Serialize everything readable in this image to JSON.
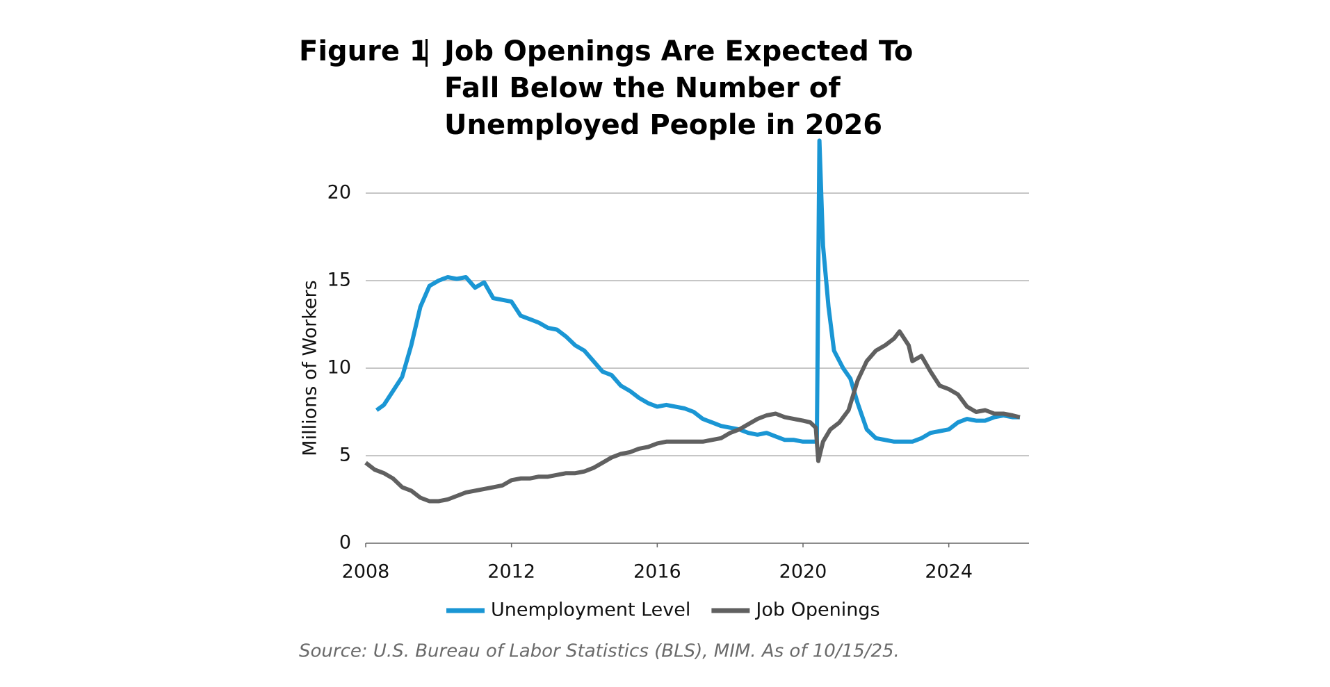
{
  "chart_data": {
    "type": "line",
    "figure_label": "Figure 1",
    "title": "Job Openings Are Expected To Fall Below the Number of Unemployed People in 2026",
    "ylabel": "Millions of Workers",
    "source": "Source: U.S. Bureau of Labor Statistics (BLS), MIM. As of 10/15/25.",
    "xlim": [
      2008,
      2026.2
    ],
    "xticks": [
      2008,
      2012,
      2016,
      2020,
      2024
    ],
    "ylim": [
      0,
      23
    ],
    "yticks": [
      0,
      5,
      10,
      15,
      20
    ],
    "grid": true,
    "legend": "bottom",
    "series": [
      {
        "name": "Unemployment Level",
        "color": "#1a96d4",
        "x": [
          2008.3,
          2008.5,
          2008.75,
          2009.0,
          2009.25,
          2009.5,
          2009.75,
          2010.0,
          2010.25,
          2010.5,
          2010.75,
          2011.0,
          2011.25,
          2011.5,
          2011.75,
          2012.0,
          2012.25,
          2012.5,
          2012.75,
          2013.0,
          2013.25,
          2013.5,
          2013.75,
          2014.0,
          2014.25,
          2014.5,
          2014.75,
          2015.0,
          2015.25,
          2015.5,
          2015.75,
          2016.0,
          2016.25,
          2016.5,
          2016.75,
          2017.0,
          2017.25,
          2017.5,
          2017.75,
          2018.0,
          2018.25,
          2018.5,
          2018.75,
          2019.0,
          2019.25,
          2019.5,
          2019.75,
          2020.0,
          2020.38,
          2020.45,
          2020.55,
          2020.7,
          2020.85,
          2021.1,
          2021.3,
          2021.5,
          2021.75,
          2022.0,
          2022.25,
          2022.5,
          2022.75,
          2023.0,
          2023.25,
          2023.5,
          2023.75,
          2024.0,
          2024.25,
          2024.5,
          2024.75,
          2025.0,
          2025.25,
          2025.5,
          2025.75,
          2025.95
        ],
        "values": [
          7.6,
          7.9,
          8.7,
          9.5,
          11.3,
          13.5,
          14.7,
          15.0,
          15.2,
          15.1,
          15.2,
          14.6,
          14.9,
          14.0,
          13.9,
          13.8,
          13.0,
          12.8,
          12.6,
          12.3,
          12.2,
          11.8,
          11.3,
          11.0,
          10.4,
          9.8,
          9.6,
          9.0,
          8.7,
          8.3,
          8.0,
          7.8,
          7.9,
          7.8,
          7.7,
          7.5,
          7.1,
          6.9,
          6.7,
          6.6,
          6.5,
          6.3,
          6.2,
          6.3,
          6.1,
          5.9,
          5.9,
          5.8,
          5.8,
          23.0,
          17.0,
          13.5,
          11.0,
          10.0,
          9.4,
          8.0,
          6.5,
          6.0,
          5.9,
          5.8,
          5.8,
          5.8,
          6.0,
          6.3,
          6.4,
          6.5,
          6.9,
          7.1,
          7.0,
          7.0,
          7.2,
          7.3,
          7.2,
          7.2
        ]
      },
      {
        "name": "Job Openings",
        "color": "#606060",
        "x": [
          2008.0,
          2008.25,
          2008.5,
          2008.75,
          2009.0,
          2009.25,
          2009.5,
          2009.75,
          2010.0,
          2010.25,
          2010.5,
          2010.75,
          2011.0,
          2011.25,
          2011.5,
          2011.75,
          2012.0,
          2012.25,
          2012.5,
          2012.75,
          2013.0,
          2013.25,
          2013.5,
          2013.75,
          2014.0,
          2014.25,
          2014.5,
          2014.75,
          2015.0,
          2015.25,
          2015.5,
          2015.75,
          2016.0,
          2016.25,
          2016.5,
          2016.75,
          2017.0,
          2017.25,
          2017.5,
          2017.75,
          2018.0,
          2018.25,
          2018.5,
          2018.75,
          2019.0,
          2019.25,
          2019.5,
          2019.75,
          2020.0,
          2020.2,
          2020.35,
          2020.42,
          2020.55,
          2020.75,
          2021.0,
          2021.25,
          2021.5,
          2021.75,
          2022.0,
          2022.25,
          2022.5,
          2022.65,
          2022.9,
          2023.0,
          2023.25,
          2023.5,
          2023.75,
          2024.0,
          2024.25,
          2024.5,
          2024.75,
          2025.0,
          2025.25,
          2025.5,
          2025.75,
          2025.95
        ],
        "values": [
          4.6,
          4.2,
          4.0,
          3.7,
          3.2,
          3.0,
          2.6,
          2.4,
          2.4,
          2.5,
          2.7,
          2.9,
          3.0,
          3.1,
          3.2,
          3.3,
          3.6,
          3.7,
          3.7,
          3.8,
          3.8,
          3.9,
          4.0,
          4.0,
          4.1,
          4.3,
          4.6,
          4.9,
          5.1,
          5.2,
          5.4,
          5.5,
          5.7,
          5.8,
          5.8,
          5.8,
          5.8,
          5.8,
          5.9,
          6.0,
          6.3,
          6.5,
          6.8,
          7.1,
          7.3,
          7.4,
          7.2,
          7.1,
          7.0,
          6.9,
          6.6,
          4.7,
          5.8,
          6.5,
          6.9,
          7.6,
          9.3,
          10.4,
          11.0,
          11.3,
          11.7,
          12.1,
          11.3,
          10.4,
          10.7,
          9.8,
          9.0,
          8.8,
          8.5,
          7.8,
          7.5,
          7.6,
          7.4,
          7.4,
          7.3,
          7.2
        ]
      }
    ]
  }
}
